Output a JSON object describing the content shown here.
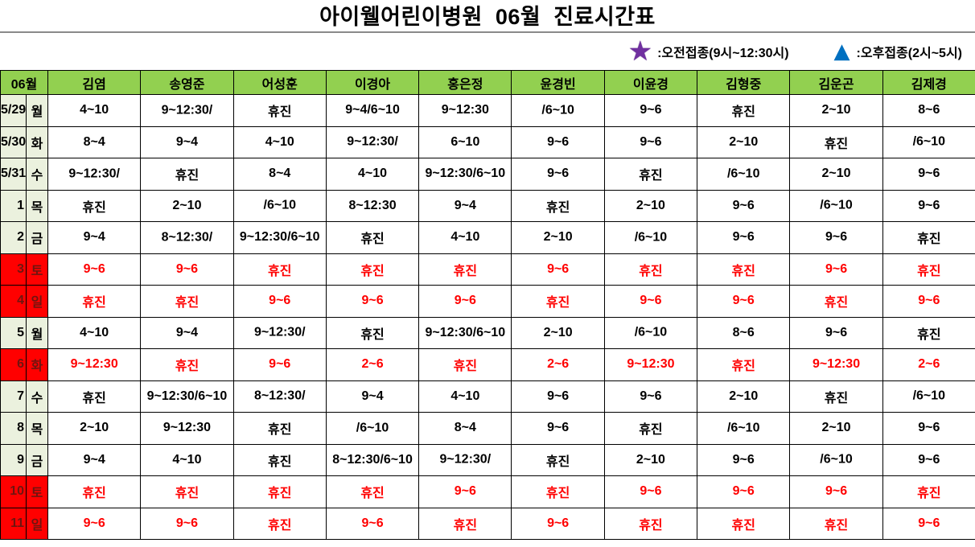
{
  "title": "아이웰어린이병원  06월  진료시간표",
  "legend": {
    "morning": {
      "icon": "star",
      "color": "#7030A0",
      "label": ":오전접종(9시~12:30시)"
    },
    "afternoon": {
      "icon": "triangle",
      "color": "#0070C0",
      "label": ":오후접종(2시~5시)"
    }
  },
  "table": {
    "month_header": "06월",
    "doctors": [
      "김염",
      "송영준",
      "어성훈",
      "이경아",
      "홍은정",
      "윤경빈",
      "이윤경",
      "김형중",
      "김운곤",
      "김제경"
    ],
    "closed_label": "휴진",
    "rows": [
      {
        "date": "5/29",
        "day": "월",
        "holiday": false,
        "cells": [
          "4~10",
          "9~12:30/▲",
          "휴진",
          "9~4/6~10",
          "9~12:30",
          "★/6~10",
          "9~6",
          "휴진",
          "2~10",
          "8~6"
        ]
      },
      {
        "date": "5/30",
        "day": "화",
        "holiday": false,
        "cells": [
          "8~4",
          "9~4",
          "4~10",
          "9~12:30/▲",
          "6~10",
          "9~6",
          "9~6",
          "2~10",
          "휴진",
          "★/6~10"
        ]
      },
      {
        "date": "5/31",
        "day": "수",
        "holiday": false,
        "cells": [
          "9~12:30/▲",
          "휴진",
          "8~4",
          "4~10",
          "9~12:30/6~10",
          "9~6",
          "휴진",
          "★/6~10",
          "2~10",
          "9~6"
        ]
      },
      {
        "date": "1",
        "day": "목",
        "holiday": false,
        "cells": [
          "휴진",
          "2~10",
          "▲/6~10",
          "8~12:30",
          "9~4",
          "휴진",
          "2~10",
          "9~6",
          "★/6~10",
          "9~6"
        ]
      },
      {
        "date": "2",
        "day": "금",
        "holiday": false,
        "cells": [
          "9~4",
          "8~12:30/▲",
          "9~12:30/6~10",
          "휴진",
          "4~10",
          "2~10",
          "★/6~10",
          "9~6",
          "9~6",
          "휴진"
        ]
      },
      {
        "date": "3",
        "day": "토",
        "holiday": true,
        "cells": [
          "9~6",
          "9~6",
          "휴진",
          "휴진",
          "휴진",
          "9~6",
          "휴진",
          "휴진",
          "9~6",
          "휴진"
        ]
      },
      {
        "date": "4",
        "day": "일",
        "holiday": true,
        "cells": [
          "휴진",
          "휴진",
          "9~6",
          "9~6",
          "9~6",
          "휴진",
          "9~6",
          "9~6",
          "휴진",
          "9~6"
        ]
      },
      {
        "date": "5",
        "day": "월",
        "holiday": false,
        "cells": [
          "4~10",
          "9~4",
          "9~12:30/▲",
          "휴진",
          "9~12:30/6~10",
          "2~10",
          "★/6~10",
          "8~6",
          "9~6",
          "휴진"
        ]
      },
      {
        "date": "6",
        "day": "화",
        "holiday": true,
        "cells": [
          "9~12:30",
          "휴진",
          "9~6",
          "2~6",
          "휴진",
          "2~6",
          "9~12:30",
          "휴진",
          "9~12:30",
          "2~6"
        ]
      },
      {
        "date": "7",
        "day": "수",
        "holiday": false,
        "cells": [
          "휴진",
          "9~12:30/6~10",
          "8~12:30/▲",
          "9~4",
          "4~10",
          "9~6",
          "9~6",
          "2~10",
          "휴진",
          "★/6~10"
        ]
      },
      {
        "date": "8",
        "day": "목",
        "holiday": false,
        "cells": [
          "2~10",
          "9~12:30",
          "휴진",
          "▲/6~10",
          "8~4",
          "9~6",
          "휴진",
          "★/6~10",
          "2~10",
          "9~6"
        ]
      },
      {
        "date": "9",
        "day": "금",
        "holiday": false,
        "cells": [
          "9~4",
          "4~10",
          "휴진",
          "8~12:30/6~10",
          "9~12:30/▲",
          "휴진",
          "2~10",
          "9~6",
          "★/6~10",
          "9~6"
        ]
      },
      {
        "date": "10",
        "day": "토",
        "holiday": true,
        "cells": [
          "휴진",
          "휴진",
          "휴진",
          "휴진",
          "9~6",
          "휴진",
          "9~6",
          "9~6",
          "9~6",
          "휴진"
        ]
      },
      {
        "date": "11",
        "day": "일",
        "holiday": true,
        "cells": [
          "9~6",
          "9~6",
          "휴진",
          "9~6",
          "휴진",
          "9~6",
          "휴진",
          "휴진",
          "휴진",
          "9~6"
        ]
      }
    ]
  }
}
